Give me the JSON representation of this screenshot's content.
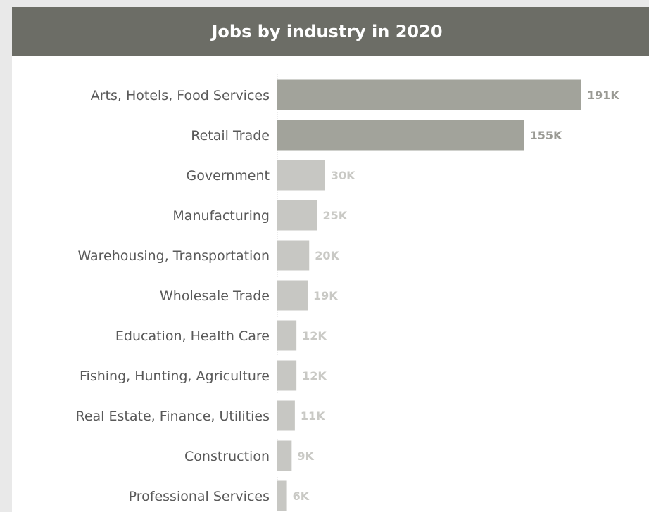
{
  "colors": {
    "background": "#e9e9e9",
    "panel": "#ffffff",
    "title_bar": "#6c6d66",
    "title_text": "#ffffff",
    "bar_highlight": "#a2a39b",
    "bar_default": "#c7c7c3",
    "value_highlight": "#9a9a94",
    "value_default": "#c9c9c5",
    "category_text": "#595959",
    "axis_line": "#d8d8d8"
  },
  "chart_data": {
    "type": "bar",
    "orientation": "horizontal",
    "title": "Jobs by industry in 2020",
    "xlabel": "",
    "ylabel": "",
    "grid": false,
    "legend": "none",
    "xlim": [
      0,
      200000
    ],
    "categories": [
      "Arts, Hotels, Food Services",
      "Retail Trade",
      "Government",
      "Manufacturing",
      "Warehousing, Transportation",
      "Wholesale Trade",
      "Education, Health Care",
      "Fishing, Hunting, Agriculture",
      "Real  Estate, Finance, Utilities",
      "Construction",
      "Professional Services"
    ],
    "values": [
      191000,
      155000,
      30000,
      25000,
      20000,
      19000,
      12000,
      12000,
      11000,
      9000,
      6000
    ],
    "value_labels": [
      "191K",
      "155K",
      "30K",
      "25K",
      "20K",
      "19K",
      "12K",
      "12K",
      "11K",
      "9K",
      "6K"
    ],
    "highlighted": [
      true,
      true,
      false,
      false,
      false,
      false,
      false,
      false,
      false,
      false,
      false
    ]
  }
}
